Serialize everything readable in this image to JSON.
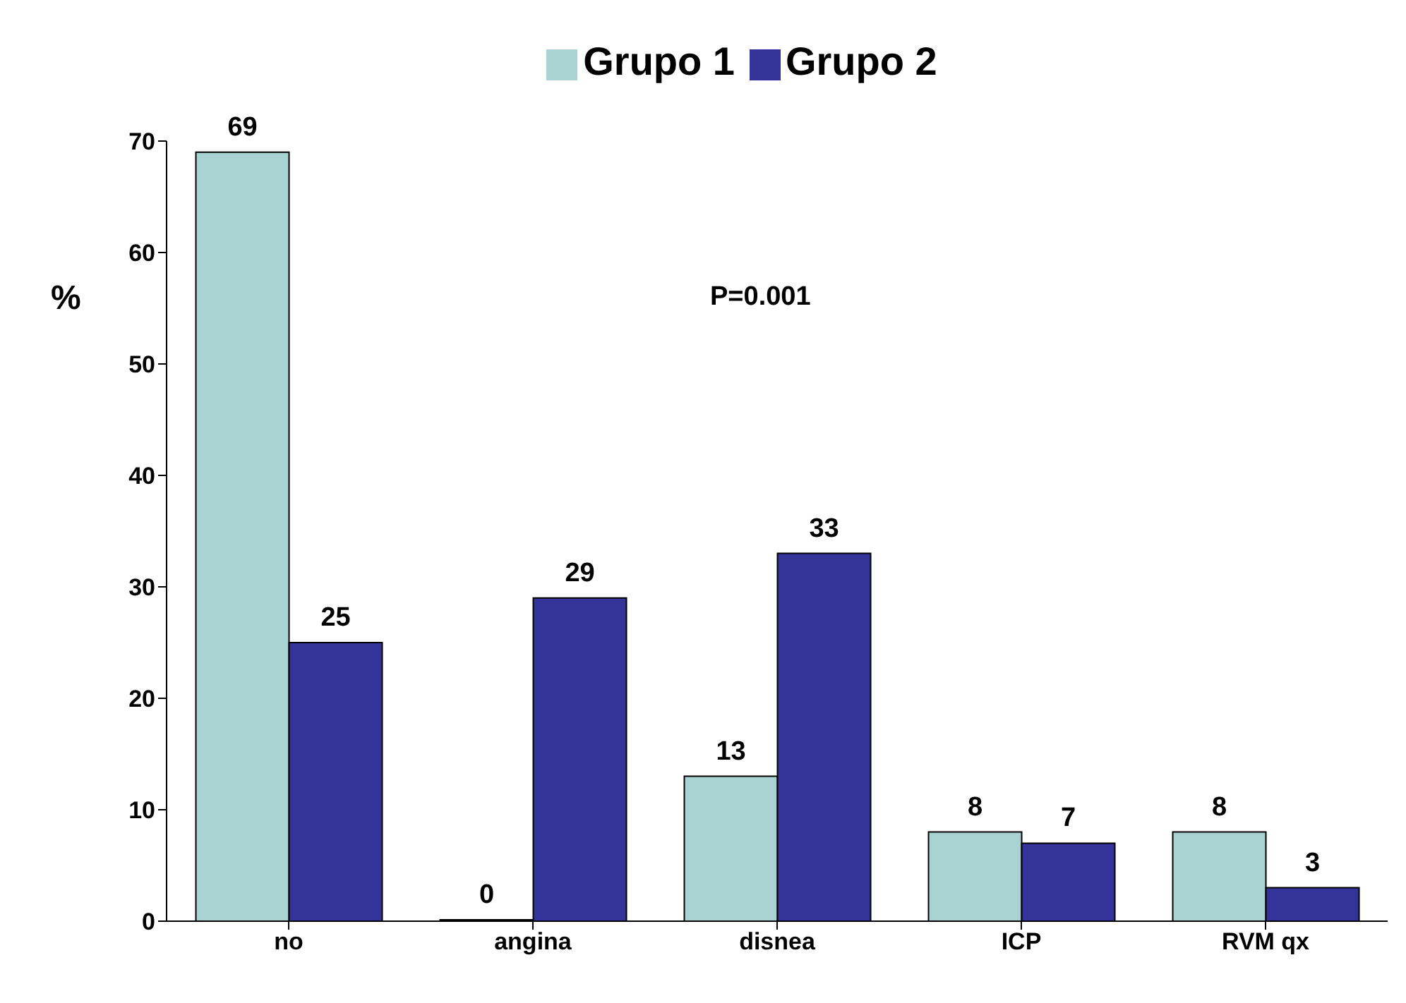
{
  "chart_data": {
    "type": "bar",
    "ylabel": "%",
    "categories": [
      "no",
      "angina",
      "disnea",
      "ICP",
      "RVM qx"
    ],
    "series": [
      {
        "name": "Grupo 1",
        "color": "#a9d3d3",
        "values": [
          69,
          0,
          13,
          8,
          8
        ]
      },
      {
        "name": "Grupo 2",
        "color": "#333399",
        "values": [
          25,
          29,
          33,
          7,
          3
        ]
      }
    ],
    "ylim": [
      0,
      70
    ],
    "yticks": [
      0,
      10,
      20,
      30,
      40,
      50,
      60,
      70
    ],
    "legend": "top",
    "data_labels": true,
    "annotations": [
      "P=0.001"
    ]
  }
}
